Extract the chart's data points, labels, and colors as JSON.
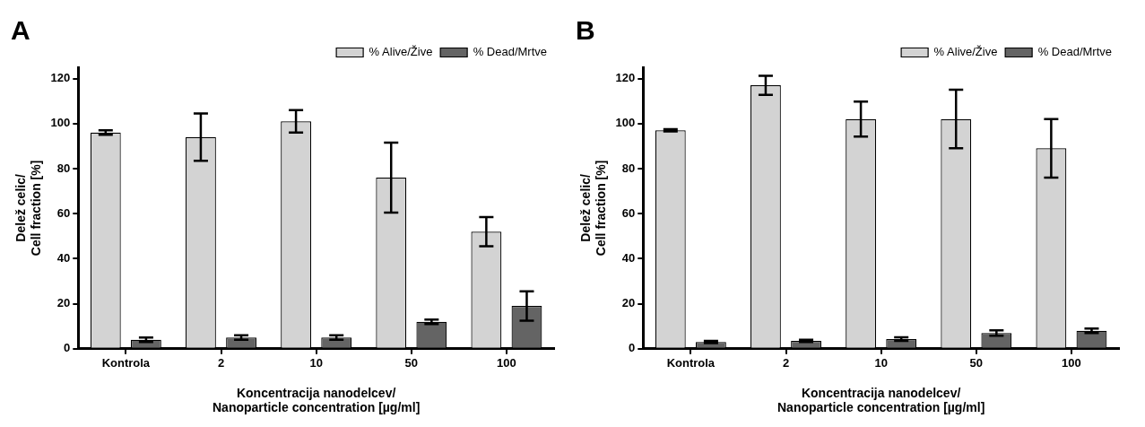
{
  "chart_data": [
    {
      "type": "bar",
      "title": "A",
      "categories": [
        "Kontrola",
        "2",
        "10",
        "50",
        "100"
      ],
      "xlabel": "Koncentracija nanodelcev/\nNanoparticle concentration [µg/ml]",
      "ylabel": "Delež celic/\nCell fraction [%]",
      "ylim": [
        0,
        125
      ],
      "yticks": [
        0,
        20,
        40,
        60,
        80,
        100,
        120
      ],
      "legend": "top right",
      "series": [
        {
          "name": "% Alive/Žive",
          "color": "#d3d3d3",
          "values": [
            96,
            94,
            101,
            76,
            52
          ],
          "errors": [
            1,
            10.5,
            5,
            15.5,
            6.5
          ]
        },
        {
          "name": "% Dead/Mrtve",
          "color": "#646464",
          "values": [
            4,
            5,
            5,
            12,
            19
          ],
          "errors": [
            1,
            1,
            1,
            1,
            6.5
          ]
        }
      ]
    },
    {
      "type": "bar",
      "title": "B",
      "categories": [
        "Kontrola",
        "2",
        "10",
        "50",
        "100"
      ],
      "xlabel": "Koncentracija nanodelcev/\nNanoparticle concentration [µg/ml]",
      "ylabel": "Delež celic/\nCell fraction [%]",
      "ylim": [
        0,
        125
      ],
      "yticks": [
        0,
        20,
        40,
        60,
        80,
        100,
        120
      ],
      "legend": "top right",
      "series": [
        {
          "name": "% Alive/Žive",
          "color": "#d3d3d3",
          "values": [
            97,
            117,
            102,
            102,
            89
          ],
          "errors": [
            0.5,
            4.2,
            7.8,
            13,
            13
          ]
        },
        {
          "name": "% Dead/Mrtve",
          "color": "#646464",
          "values": [
            3,
            3.5,
            4.3,
            7,
            8
          ],
          "errors": [
            0.5,
            0.5,
            0.8,
            1.2,
            1
          ]
        }
      ]
    }
  ]
}
